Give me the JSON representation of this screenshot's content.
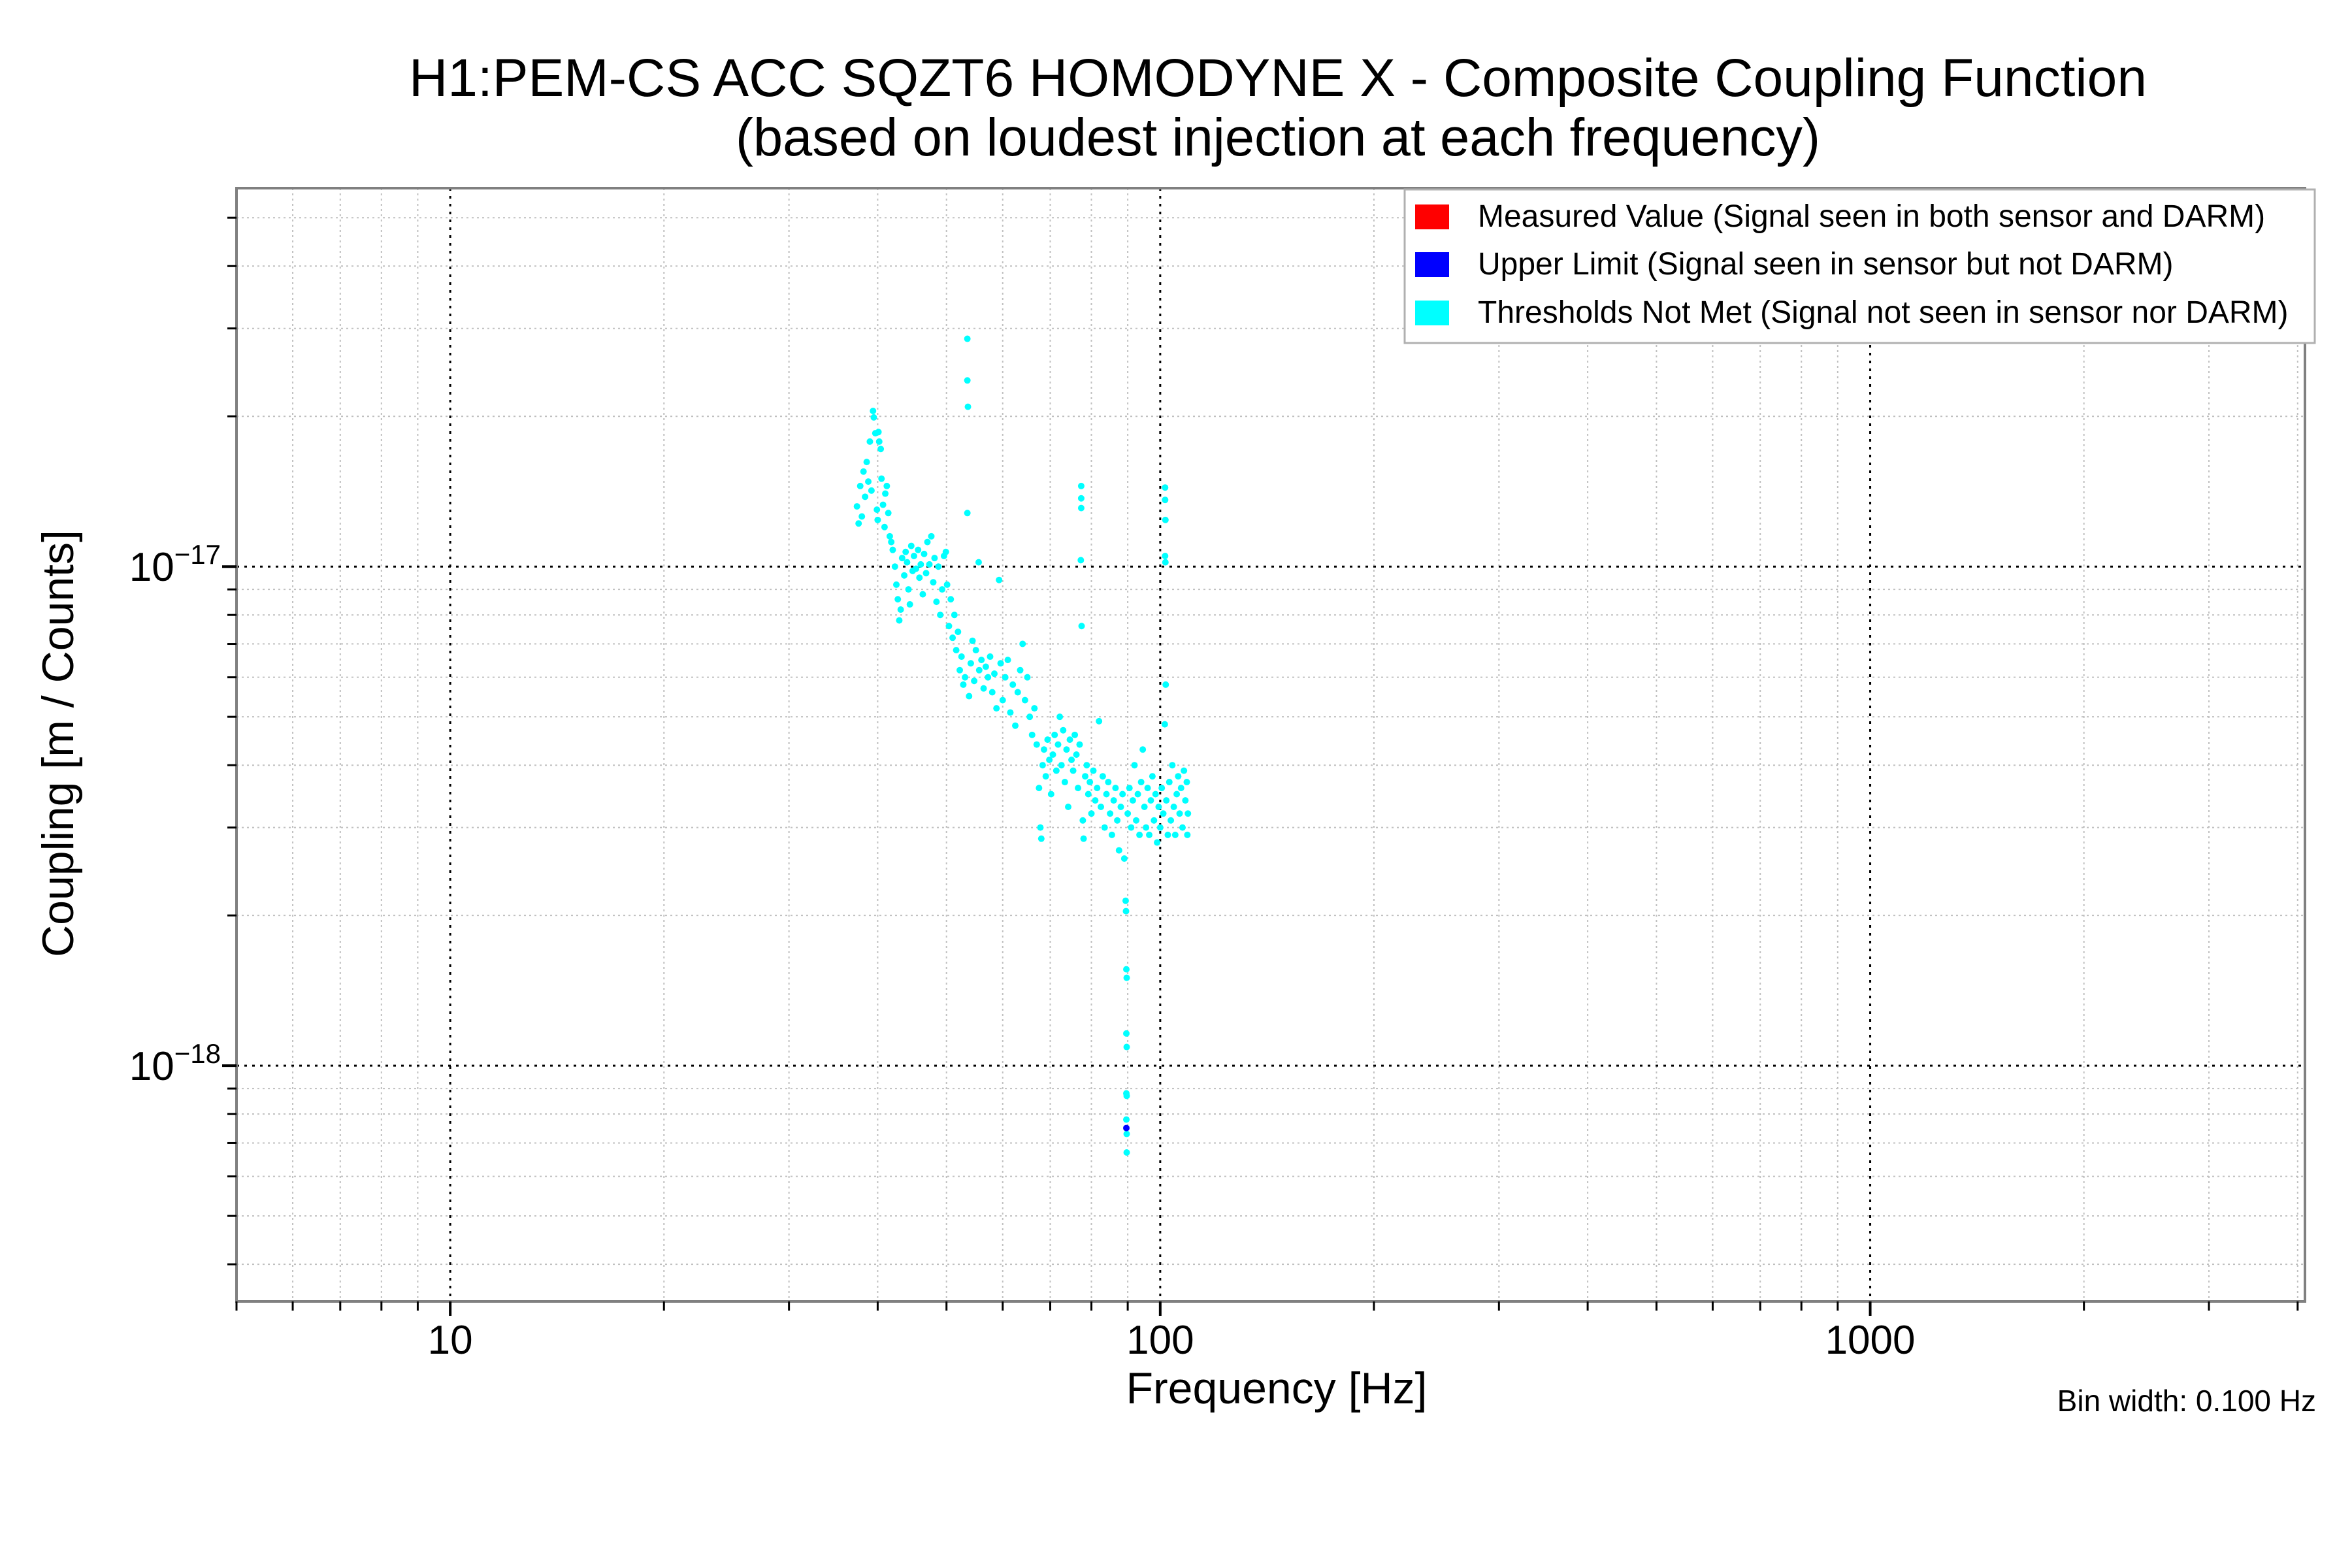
{
  "chart_data": {
    "type": "scatter",
    "title": "H1:PEM-CS ACC SQZT6 HOMODYNE X - Composite Coupling Function",
    "subtitle": "(based on loudest injection at each frequency)",
    "xlabel": "Frequency [Hz]",
    "ylabel": "Coupling [m / Counts]",
    "xscale": "log",
    "yscale": "log",
    "xlim": [
      5,
      4096
    ],
    "ylim": [
      3.37e-19,
      5.73e-17
    ],
    "grid": true,
    "x_ticks": [
      {
        "value": 10,
        "label": "10"
      },
      {
        "value": 100,
        "label": "100"
      },
      {
        "value": 1000,
        "label": "1000"
      }
    ],
    "y_ticks": [
      {
        "value": 1e-17,
        "base": "10",
        "exponent": "−17"
      },
      {
        "value": 1e-18,
        "base": "10",
        "exponent": "−18"
      }
    ],
    "legend": {
      "placement": "top-right",
      "entries": [
        {
          "label": "Measured Value (Signal seen in both sensor and DARM)",
          "color": "#ff0000"
        },
        {
          "label": "Upper Limit (Signal seen in sensor but not DARM)",
          "color": "#0000ff"
        },
        {
          "label": "Thresholds Not Met (Signal not seen in sensor nor DARM)",
          "color": "#00ffff"
        }
      ]
    },
    "annotation": "Bin width: 0.100 Hz",
    "series": [
      {
        "name": "Measured Value (Signal seen in both sensor and DARM)",
        "color": "#ff0000",
        "points": []
      },
      {
        "name": "Upper Limit (Signal seen in sensor but not DARM)",
        "color": "#0000ff",
        "points": [
          [
            89.6,
            7.5e-19
          ]
        ]
      },
      {
        "name": "Thresholds Not Met (Signal not seen in sensor nor DARM)",
        "color": "#00ffff",
        "points": [
          [
            37.4,
            1.32e-17
          ],
          [
            37.6,
            1.22e-17
          ],
          [
            37.8,
            1.45e-17
          ],
          [
            38.0,
            1.26e-17
          ],
          [
            38.2,
            1.55e-17
          ],
          [
            38.4,
            1.38e-17
          ],
          [
            38.6,
            1.62e-17
          ],
          [
            38.8,
            1.48e-17
          ],
          [
            39.0,
            1.78e-17
          ],
          [
            39.2,
            1.42e-17
          ],
          [
            39.4,
            2.05e-17
          ],
          [
            39.5,
            1.99e-17
          ],
          [
            39.7,
            1.85e-17
          ],
          [
            39.9,
            1.3e-17
          ],
          [
            40.0,
            1.24e-17
          ],
          [
            40.1,
            1.86e-17
          ],
          [
            40.2,
            1.78e-17
          ],
          [
            40.4,
            1.72e-17
          ],
          [
            40.5,
            1.5e-17
          ],
          [
            40.7,
            1.33e-17
          ],
          [
            40.9,
            1.2e-17
          ],
          [
            41.0,
            1.4e-17
          ],
          [
            41.2,
            1.45e-17
          ],
          [
            41.4,
            1.28e-17
          ],
          [
            41.6,
            1.15e-17
          ],
          [
            41.8,
            1.12e-17
          ],
          [
            42.0,
            1.08e-17
          ],
          [
            42.3,
            1e-17
          ],
          [
            42.5,
            9.2e-18
          ],
          [
            42.7,
            8.6e-18
          ],
          [
            42.9,
            7.8e-18
          ],
          [
            43.1,
            8.2e-18
          ],
          [
            43.3,
            1.04e-17
          ],
          [
            43.6,
            9.6e-18
          ],
          [
            43.8,
            1.07e-17
          ],
          [
            44.0,
            1.02e-17
          ],
          [
            44.2,
            9e-18
          ],
          [
            44.4,
            8.4e-18
          ],
          [
            44.6,
            1.1e-17
          ],
          [
            44.8,
            9.8e-18
          ],
          [
            45.0,
            1.05e-17
          ],
          [
            45.3,
            9.9e-18
          ],
          [
            45.6,
            1.08e-17
          ],
          [
            45.8,
            9.5e-18
          ],
          [
            46.0,
            1.01e-17
          ],
          [
            46.3,
            8.8e-18
          ],
          [
            46.5,
            1.06e-17
          ],
          [
            46.8,
            9.7e-18
          ],
          [
            47.0,
            1.12e-17
          ],
          [
            47.3,
            1.01e-17
          ],
          [
            47.6,
            1.15e-17
          ],
          [
            47.9,
            9.3e-18
          ],
          [
            48.1,
            1.04e-17
          ],
          [
            48.4,
            8.5e-18
          ],
          [
            48.7,
            1e-17
          ],
          [
            49.0,
            8e-18
          ],
          [
            49.3,
            9e-18
          ],
          [
            49.6,
            1.05e-17
          ],
          [
            49.9,
            1.07e-17
          ],
          [
            50.1,
            9.2e-18
          ],
          [
            50.4,
            7.6e-18
          ],
          [
            50.7,
            8.6e-18
          ],
          [
            51.0,
            7.2e-18
          ],
          [
            51.3,
            8e-18
          ],
          [
            51.6,
            6.8e-18
          ],
          [
            51.9,
            7.4e-18
          ],
          [
            52.2,
            6.2e-18
          ],
          [
            52.5,
            6.6e-18
          ],
          [
            52.8,
            5.8e-18
          ],
          [
            53.1,
            6e-18
          ],
          [
            53.5,
            2.86e-17
          ],
          [
            53.5,
            2.36e-17
          ],
          [
            53.6,
            2.09e-17
          ],
          [
            53.5,
            1.28e-17
          ],
          [
            53.8,
            5.5e-18
          ],
          [
            54.1,
            6.4e-18
          ],
          [
            54.4,
            7.1e-18
          ],
          [
            54.7,
            5.9e-18
          ],
          [
            55.0,
            6.8e-18
          ],
          [
            55.5,
            1.02e-17
          ],
          [
            55.6,
            6.2e-18
          ],
          [
            56.0,
            6.5e-18
          ],
          [
            56.4,
            5.7e-18
          ],
          [
            56.8,
            6.3e-18
          ],
          [
            57.2,
            6e-18
          ],
          [
            57.6,
            6.6e-18
          ],
          [
            58.0,
            5.6e-18
          ],
          [
            58.4,
            6.1e-18
          ],
          [
            58.8,
            5.2e-18
          ],
          [
            59.3,
            9.4e-18
          ],
          [
            59.6,
            6.4e-18
          ],
          [
            60.0,
            5.4e-18
          ],
          [
            60.5,
            6e-18
          ],
          [
            61.0,
            6.5e-18
          ],
          [
            61.5,
            5.1e-18
          ],
          [
            62.0,
            5.8e-18
          ],
          [
            62.5,
            4.8e-18
          ],
          [
            63.0,
            5.6e-18
          ],
          [
            63.5,
            6.2e-18
          ],
          [
            64.0,
            7e-18
          ],
          [
            64.5,
            5.4e-18
          ],
          [
            65.0,
            6e-18
          ],
          [
            65.5,
            5e-18
          ],
          [
            66.0,
            4.6e-18
          ],
          [
            66.5,
            5.2e-18
          ],
          [
            67.0,
            4.4e-18
          ],
          [
            67.5,
            3.6e-18
          ],
          [
            67.8,
            3e-18
          ],
          [
            68.0,
            2.85e-18
          ],
          [
            68.3,
            4e-18
          ],
          [
            68.6,
            4.3e-18
          ],
          [
            69.0,
            3.8e-18
          ],
          [
            69.4,
            4.5e-18
          ],
          [
            69.8,
            4.1e-18
          ],
          [
            70.2,
            3.5e-18
          ],
          [
            70.6,
            4.2e-18
          ],
          [
            71.0,
            4.6e-18
          ],
          [
            71.4,
            3.9e-18
          ],
          [
            71.8,
            4.4e-18
          ],
          [
            72.2,
            5e-18
          ],
          [
            72.6,
            4e-18
          ],
          [
            73.0,
            4.7e-18
          ],
          [
            73.4,
            3.7e-18
          ],
          [
            73.8,
            4.3e-18
          ],
          [
            74.2,
            3.3e-18
          ],
          [
            74.6,
            4.5e-18
          ],
          [
            75.0,
            4.1e-18
          ],
          [
            75.4,
            3.9e-18
          ],
          [
            75.8,
            4.6e-18
          ],
          [
            76.2,
            4.2e-18
          ],
          [
            76.6,
            3.6e-18
          ],
          [
            77.0,
            4.4e-18
          ],
          [
            77.4,
            1.45e-17
          ],
          [
            77.4,
            1.37e-17
          ],
          [
            77.4,
            1.31e-17
          ],
          [
            77.3,
            1.03e-17
          ],
          [
            77.5,
            7.6e-18
          ],
          [
            77.8,
            3.1e-18
          ],
          [
            78.0,
            2.85e-18
          ],
          [
            78.4,
            3.8e-18
          ],
          [
            78.8,
            4e-18
          ],
          [
            79.2,
            3.5e-18
          ],
          [
            79.6,
            3.7e-18
          ],
          [
            80.0,
            3.2e-18
          ],
          [
            80.5,
            3.9e-18
          ],
          [
            81.0,
            3.4e-18
          ],
          [
            81.5,
            3.6e-18
          ],
          [
            82.0,
            4.9e-18
          ],
          [
            82.5,
            3.3e-18
          ],
          [
            83.0,
            3.8e-18
          ],
          [
            83.5,
            3e-18
          ],
          [
            84.0,
            3.5e-18
          ],
          [
            84.5,
            3.7e-18
          ],
          [
            85.0,
            3.2e-18
          ],
          [
            85.5,
            2.9e-18
          ],
          [
            86.0,
            3.4e-18
          ],
          [
            86.5,
            3.6e-18
          ],
          [
            87.0,
            3.1e-18
          ],
          [
            87.5,
            2.7e-18
          ],
          [
            88.0,
            3.3e-18
          ],
          [
            88.5,
            3.5e-18
          ],
          [
            89.0,
            2.6e-18
          ],
          [
            89.4,
            2.14e-18
          ],
          [
            89.5,
            2.04e-18
          ],
          [
            89.6,
            1.56e-18
          ],
          [
            89.7,
            1.5e-18
          ],
          [
            89.6,
            1.16e-18
          ],
          [
            89.7,
            1.09e-18
          ],
          [
            89.6,
            8.8e-19
          ],
          [
            89.7,
            8.7e-19
          ],
          [
            89.6,
            7.8e-19
          ],
          [
            89.7,
            7.3e-19
          ],
          [
            89.7,
            6.7e-19
          ],
          [
            90.0,
            3.2e-18
          ],
          [
            90.5,
            3.6e-18
          ],
          [
            91.0,
            3e-18
          ],
          [
            91.5,
            3.4e-18
          ],
          [
            92.0,
            4e-18
          ],
          [
            92.5,
            3.1e-18
          ],
          [
            93.0,
            3.5e-18
          ],
          [
            93.5,
            2.9e-18
          ],
          [
            94.0,
            3.7e-18
          ],
          [
            94.5,
            4.3e-18
          ],
          [
            95.0,
            3.3e-18
          ],
          [
            95.5,
            3e-18
          ],
          [
            96.0,
            3.6e-18
          ],
          [
            96.5,
            2.9e-18
          ],
          [
            97.0,
            3.4e-18
          ],
          [
            97.5,
            3.8e-18
          ],
          [
            98.0,
            3.1e-18
          ],
          [
            98.5,
            3.5e-18
          ],
          [
            99.0,
            2.8e-18
          ],
          [
            99.5,
            3.3e-18
          ],
          [
            100.0,
            3e-18
          ],
          [
            100.5,
            3.6e-18
          ],
          [
            101.0,
            3.2e-18
          ],
          [
            101.6,
            1.44e-17
          ],
          [
            101.6,
            1.36e-17
          ],
          [
            101.7,
            1.24e-17
          ],
          [
            101.6,
            1.05e-17
          ],
          [
            101.7,
            1.02e-17
          ],
          [
            101.8,
            5.8e-18
          ],
          [
            101.5,
            4.83e-18
          ],
          [
            102.0,
            3.4e-18
          ],
          [
            102.5,
            2.9e-18
          ],
          [
            103.0,
            3.7e-18
          ],
          [
            103.5,
            3.1e-18
          ],
          [
            104.0,
            4e-18
          ],
          [
            104.5,
            3.3e-18
          ],
          [
            105.0,
            2.9e-18
          ],
          [
            105.5,
            3.5e-18
          ],
          [
            106.0,
            3.8e-18
          ],
          [
            106.5,
            3.2e-18
          ],
          [
            107.0,
            3.6e-18
          ],
          [
            107.5,
            3e-18
          ],
          [
            108.0,
            3.9e-18
          ],
          [
            108.5,
            3.4e-18
          ],
          [
            109.0,
            3.7e-18
          ],
          [
            109.4,
            3.2e-18
          ],
          [
            109.2,
            2.9e-18
          ]
        ]
      }
    ]
  }
}
